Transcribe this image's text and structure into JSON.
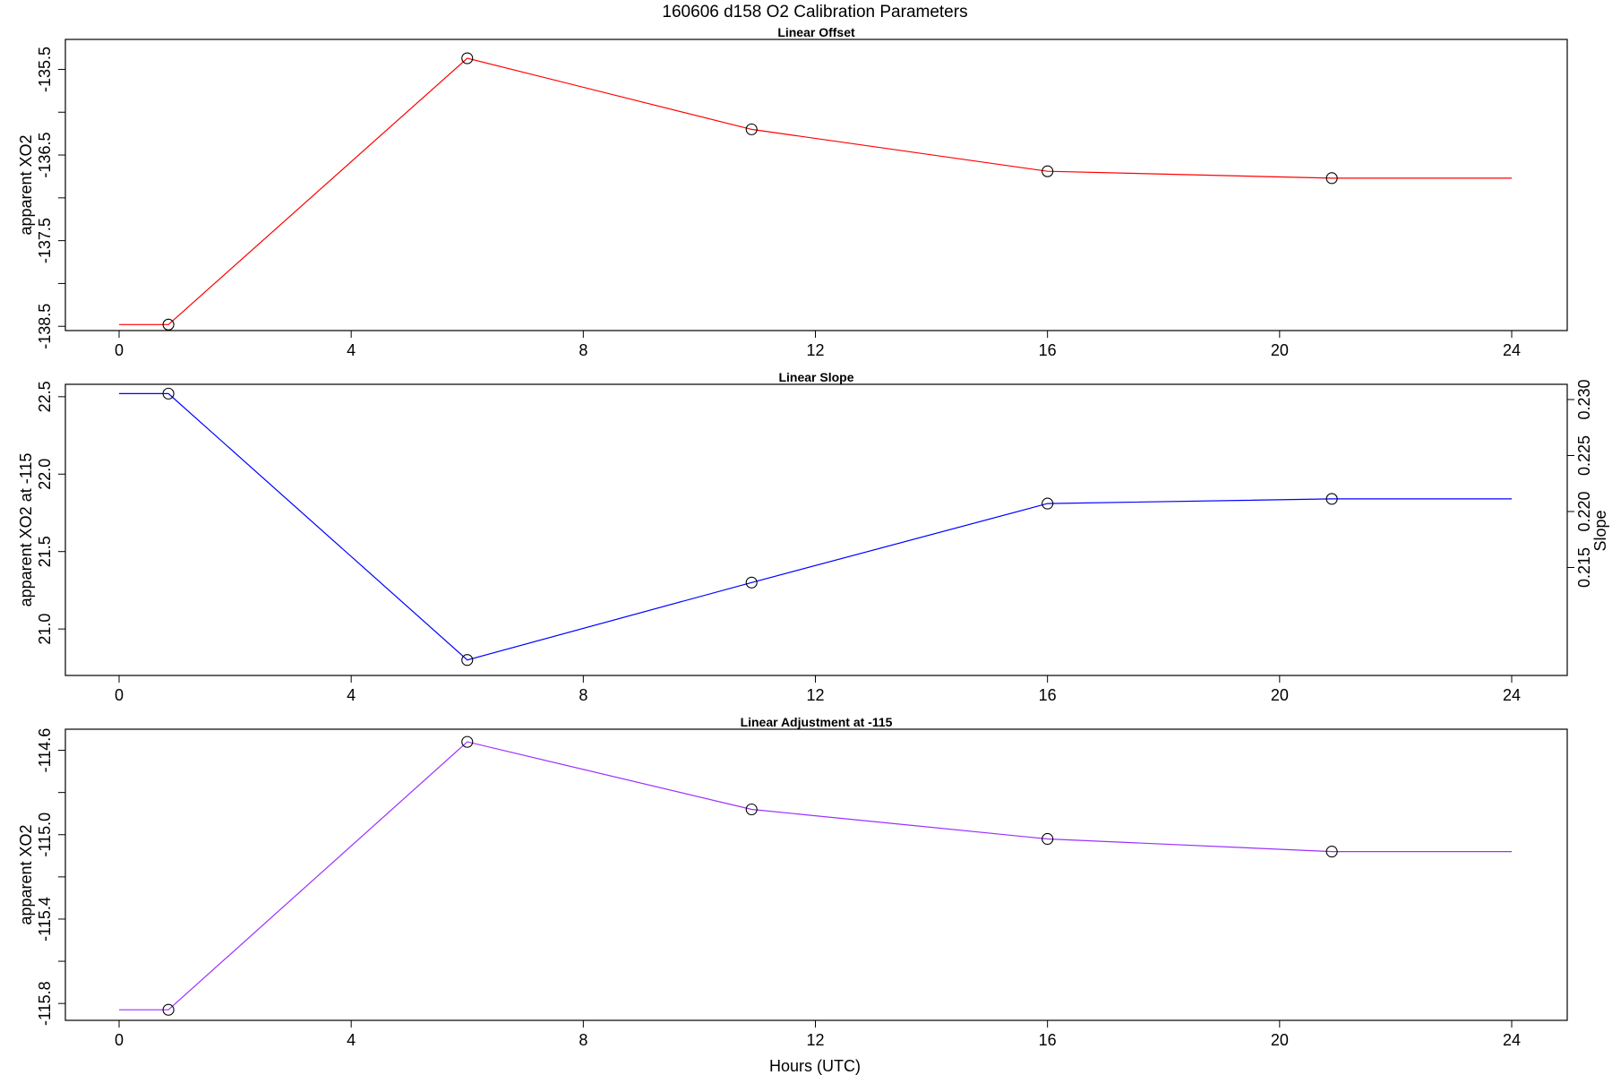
{
  "figure": {
    "title": "160606   d158   O2 Calibration Parameters",
    "xlabel": "Hours (UTC)"
  },
  "chart_data": [
    {
      "type": "line",
      "title": "Linear Offset",
      "xlabel": "",
      "ylabel": "apparent XO2",
      "color": "#ff0000",
      "xlim": [
        0,
        24
      ],
      "ylim": [
        -138.55,
        -135.15
      ],
      "x_ticks": [
        0,
        4,
        8,
        12,
        16,
        20,
        24
      ],
      "y_ticks": [
        -138.5,
        -138.0,
        -137.5,
        -137.0,
        -136.5,
        -136.0,
        -135.5
      ],
      "y_tick_labels": [
        "-138.5",
        "",
        "-137.5",
        "",
        "-136.5",
        "",
        "-135.5"
      ],
      "x": [
        0.85,
        6.0,
        10.9,
        16.0,
        20.9
      ],
      "y": [
        -138.48,
        -135.37,
        -136.2,
        -136.69,
        -136.77
      ],
      "line_start_x": 0.0,
      "line_end_x": 24.0
    },
    {
      "type": "line",
      "title": "Linear Slope",
      "xlabel": "",
      "ylabel": "apparent XO2 at -115",
      "ylabel_right": "Slope",
      "color": "#0000ff",
      "xlim": [
        0,
        24
      ],
      "ylim": [
        20.7,
        22.58
      ],
      "x_ticks": [
        0,
        4,
        8,
        12,
        16,
        20,
        24
      ],
      "y_ticks": [
        21.0,
        21.5,
        22.0,
        22.5
      ],
      "y_tick_labels": [
        "21.0",
        "21.5",
        "22.0",
        "22.5"
      ],
      "right_y_ticks": [
        0.215,
        0.22,
        0.225,
        0.23
      ],
      "right_y_tick_labels": [
        "0.215",
        "0.220",
        "0.225",
        "0.230"
      ],
      "x": [
        0.85,
        6.0,
        10.9,
        16.0,
        20.9
      ],
      "y": [
        22.52,
        20.8,
        21.3,
        21.81,
        21.84
      ],
      "line_start_x": 0.0,
      "line_end_x": 24.0
    },
    {
      "type": "line",
      "title": "Linear Adjustment at -115",
      "xlabel": "Hours (UTC)",
      "ylabel": "apparent XO2",
      "color": "#9b30ff",
      "xlim": [
        0,
        24
      ],
      "ylim": [
        -115.88,
        -114.5
      ],
      "x_ticks": [
        0,
        4,
        8,
        12,
        16,
        20,
        24
      ],
      "y_ticks": [
        -115.8,
        -115.6,
        -115.4,
        -115.2,
        -115.0,
        -114.8,
        -114.6
      ],
      "y_tick_labels": [
        "-115.8",
        "",
        "-115.4",
        "",
        "-115.0",
        "",
        "-114.6"
      ],
      "x": [
        0.85,
        6.0,
        10.9,
        16.0,
        20.9
      ],
      "y": [
        -115.83,
        -114.56,
        -114.88,
        -115.02,
        -115.08
      ],
      "line_start_x": 0.0,
      "line_end_x": 24.0
    }
  ]
}
